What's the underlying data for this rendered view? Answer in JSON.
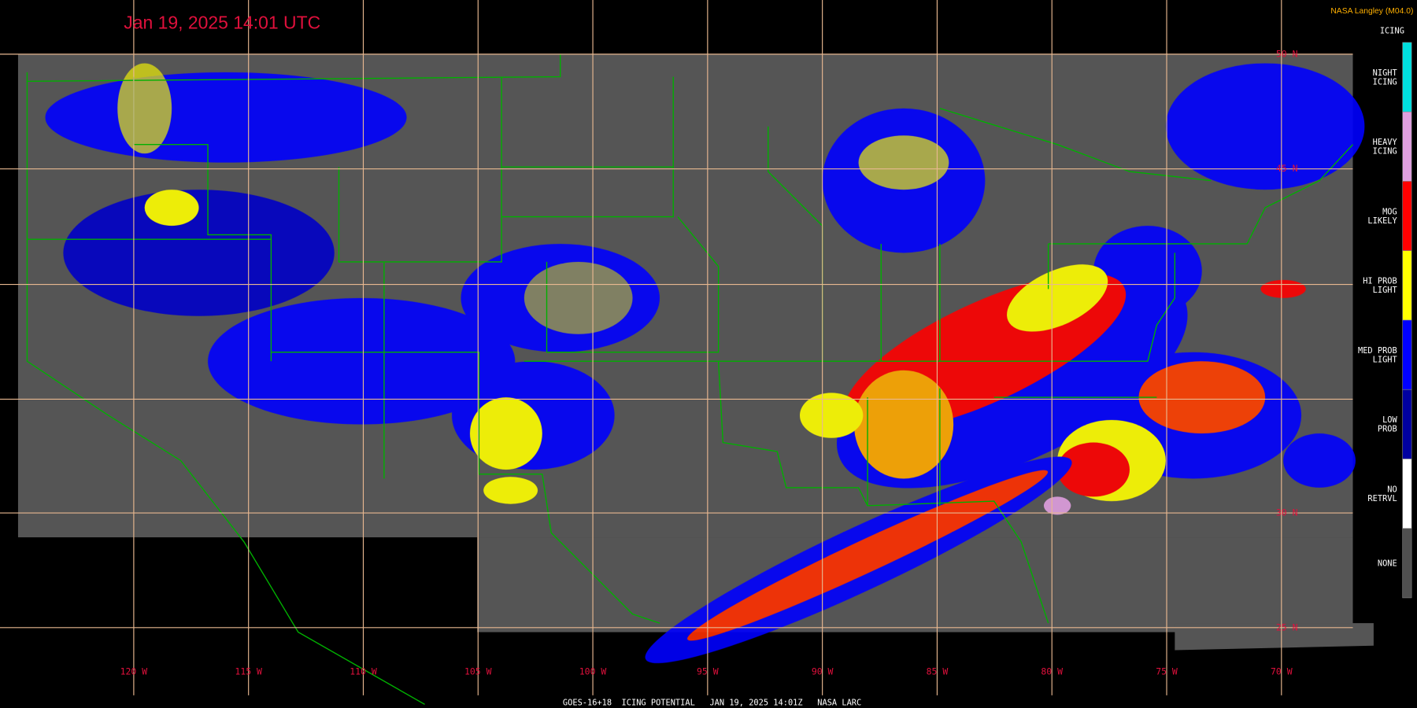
{
  "title": "Jan 19, 2025 14:01 UTC",
  "credit": "NASA Langley (M04.0)",
  "legend": {
    "title": "ICING",
    "items": [
      {
        "lines": [
          "NIGHT",
          "ICING"
        ],
        "color": "#00e0e0"
      },
      {
        "lines": [
          "HEAVY",
          "ICING"
        ],
        "color": "#e0a0e0"
      },
      {
        "lines": [
          "MOG",
          "LIKELY"
        ],
        "color": "#ff0000"
      },
      {
        "lines": [
          "HI PROB",
          "LIGHT"
        ],
        "color": "#ffff00"
      },
      {
        "lines": [
          "MED PROB",
          "LIGHT"
        ],
        "color": "#0000ff"
      },
      {
        "lines": [
          "LOW",
          "PROB"
        ],
        "color": "#0000a0"
      },
      {
        "lines": [
          "NO",
          "RETRVL"
        ],
        "color": "#ffffff"
      },
      {
        "lines": [
          "NONE"
        ],
        "color": "#505050"
      }
    ]
  },
  "longitudes": [
    {
      "value": -120,
      "label": "120 W"
    },
    {
      "value": -115,
      "label": "115 W"
    },
    {
      "value": -110,
      "label": "110 W"
    },
    {
      "value": -105,
      "label": "105 W"
    },
    {
      "value": -100,
      "label": "100 W"
    },
    {
      "value": -95,
      "label": "95 W"
    },
    {
      "value": -90,
      "label": "90 W"
    },
    {
      "value": -85,
      "label": "85 W"
    },
    {
      "value": -80,
      "label": "80 W"
    },
    {
      "value": -75,
      "label": "75 W"
    },
    {
      "value": -70,
      "label": "70 W"
    }
  ],
  "latitudes": [
    {
      "value": 50,
      "label": "50 N"
    },
    {
      "value": 45,
      "label": "45 N"
    },
    {
      "value": 30,
      "label": "30 N"
    },
    {
      "value": 25,
      "label": "25 N"
    }
  ],
  "footer": "GOES-16+18  ICING POTENTIAL   JAN 19, 2025 14:01Z   NASA LARC"
}
